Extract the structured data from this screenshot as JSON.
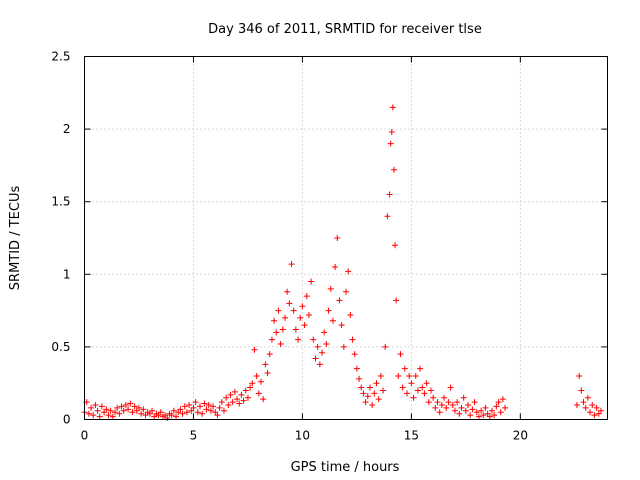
{
  "chart_data": {
    "type": "scatter",
    "title": "Day 346 of 2011, SRMTID for receiver tlse",
    "xlabel": "GPS time / hours",
    "ylabel": "SRMTID / TECUs",
    "xlim": [
      0,
      24
    ],
    "ylim": [
      0,
      2.5
    ],
    "grid": true,
    "marker": "+",
    "color": "#ff0000",
    "x_ticks": [
      0,
      5,
      10,
      15,
      20
    ],
    "x_tick_labels": [
      "0",
      "5",
      "10",
      "15",
      "20"
    ],
    "y_ticks": [
      0,
      0.5,
      1,
      1.5,
      2,
      2.5
    ],
    "y_tick_labels": [
      "0",
      "0.5",
      "1",
      "1.5",
      "2",
      "2.5"
    ],
    "series": [
      {
        "name": "SRMTID",
        "points": [
          [
            0.0,
            0.05
          ],
          [
            0.1,
            0.12
          ],
          [
            0.2,
            0.04
          ],
          [
            0.3,
            0.08
          ],
          [
            0.4,
            0.03
          ],
          [
            0.5,
            0.1
          ],
          [
            0.6,
            0.06
          ],
          [
            0.7,
            0.02
          ],
          [
            0.8,
            0.09
          ],
          [
            0.9,
            0.05
          ],
          [
            1.0,
            0.07
          ],
          [
            1.1,
            0.03
          ],
          [
            1.2,
            0.06
          ],
          [
            1.3,
            0.02
          ],
          [
            1.4,
            0.05
          ],
          [
            1.5,
            0.08
          ],
          [
            1.6,
            0.04
          ],
          [
            1.7,
            0.09
          ],
          [
            1.8,
            0.06
          ],
          [
            1.9,
            0.1
          ],
          [
            2.0,
            0.07
          ],
          [
            2.1,
            0.11
          ],
          [
            2.2,
            0.05
          ],
          [
            2.3,
            0.09
          ],
          [
            2.4,
            0.06
          ],
          [
            2.5,
            0.08
          ],
          [
            2.6,
            0.04
          ],
          [
            2.7,
            0.07
          ],
          [
            2.8,
            0.03
          ],
          [
            2.9,
            0.05
          ],
          [
            3.0,
            0.04
          ],
          [
            3.1,
            0.06
          ],
          [
            3.2,
            0.02
          ],
          [
            3.3,
            0.04
          ],
          [
            3.4,
            0.03
          ],
          [
            3.5,
            0.05
          ],
          [
            3.6,
            0.02
          ],
          [
            3.7,
            0.03
          ],
          [
            3.8,
            0.01
          ],
          [
            3.9,
            0.04
          ],
          [
            4.0,
            0.03
          ],
          [
            4.1,
            0.06
          ],
          [
            4.2,
            0.02
          ],
          [
            4.3,
            0.05
          ],
          [
            4.4,
            0.07
          ],
          [
            4.5,
            0.04
          ],
          [
            4.6,
            0.09
          ],
          [
            4.7,
            0.05
          ],
          [
            4.8,
            0.1
          ],
          [
            4.9,
            0.06
          ],
          [
            5.0,
            0.08
          ],
          [
            5.1,
            0.12
          ],
          [
            5.2,
            0.05
          ],
          [
            5.3,
            0.09
          ],
          [
            5.4,
            0.04
          ],
          [
            5.5,
            0.11
          ],
          [
            5.6,
            0.07
          ],
          [
            5.7,
            0.1
          ],
          [
            5.8,
            0.06
          ],
          [
            5.9,
            0.09
          ],
          [
            6.0,
            0.05
          ],
          [
            6.1,
            0.03
          ],
          [
            6.2,
            0.08
          ],
          [
            6.3,
            0.12
          ],
          [
            6.4,
            0.06
          ],
          [
            6.5,
            0.15
          ],
          [
            6.6,
            0.1
          ],
          [
            6.7,
            0.17
          ],
          [
            6.8,
            0.12
          ],
          [
            6.9,
            0.19
          ],
          [
            7.0,
            0.14
          ],
          [
            7.1,
            0.11
          ],
          [
            7.2,
            0.17
          ],
          [
            7.3,
            0.13
          ],
          [
            7.4,
            0.2
          ],
          [
            7.5,
            0.15
          ],
          [
            7.6,
            0.22
          ],
          [
            7.7,
            0.25
          ],
          [
            7.8,
            0.48
          ],
          [
            7.9,
            0.3
          ],
          [
            8.0,
            0.18
          ],
          [
            8.1,
            0.26
          ],
          [
            8.2,
            0.14
          ],
          [
            8.3,
            0.38
          ],
          [
            8.4,
            0.32
          ],
          [
            8.5,
            0.45
          ],
          [
            8.6,
            0.55
          ],
          [
            8.7,
            0.68
          ],
          [
            8.8,
            0.6
          ],
          [
            8.9,
            0.75
          ],
          [
            9.0,
            0.52
          ],
          [
            9.1,
            0.62
          ],
          [
            9.2,
            0.7
          ],
          [
            9.3,
            0.88
          ],
          [
            9.4,
            0.8
          ],
          [
            9.5,
            1.07
          ],
          [
            9.6,
            0.75
          ],
          [
            9.7,
            0.62
          ],
          [
            9.8,
            0.55
          ],
          [
            9.9,
            0.7
          ],
          [
            10.0,
            0.78
          ],
          [
            10.1,
            0.65
          ],
          [
            10.2,
            0.85
          ],
          [
            10.3,
            0.72
          ],
          [
            10.4,
            0.95
          ],
          [
            10.5,
            0.55
          ],
          [
            10.6,
            0.42
          ],
          [
            10.7,
            0.5
          ],
          [
            10.8,
            0.38
          ],
          [
            10.9,
            0.46
          ],
          [
            11.0,
            0.6
          ],
          [
            11.1,
            0.52
          ],
          [
            11.2,
            0.75
          ],
          [
            11.3,
            0.9
          ],
          [
            11.4,
            0.68
          ],
          [
            11.5,
            1.05
          ],
          [
            11.6,
            1.25
          ],
          [
            11.7,
            0.82
          ],
          [
            11.8,
            0.65
          ],
          [
            11.9,
            0.5
          ],
          [
            12.0,
            0.88
          ],
          [
            12.1,
            1.02
          ],
          [
            12.2,
            0.72
          ],
          [
            12.3,
            0.55
          ],
          [
            12.4,
            0.45
          ],
          [
            12.5,
            0.35
          ],
          [
            12.6,
            0.28
          ],
          [
            12.7,
            0.22
          ],
          [
            12.8,
            0.18
          ],
          [
            12.9,
            0.12
          ],
          [
            13.0,
            0.16
          ],
          [
            13.1,
            0.22
          ],
          [
            13.2,
            0.1
          ],
          [
            13.3,
            0.18
          ],
          [
            13.4,
            0.25
          ],
          [
            13.5,
            0.14
          ],
          [
            13.6,
            0.3
          ],
          [
            13.7,
            0.2
          ],
          [
            13.8,
            0.5
          ],
          [
            13.9,
            1.4
          ],
          [
            14.0,
            1.55
          ],
          [
            14.05,
            1.9
          ],
          [
            14.1,
            1.98
          ],
          [
            14.15,
            2.15
          ],
          [
            14.2,
            1.72
          ],
          [
            14.25,
            1.2
          ],
          [
            14.3,
            0.82
          ],
          [
            14.4,
            0.3
          ],
          [
            14.5,
            0.45
          ],
          [
            14.6,
            0.22
          ],
          [
            14.7,
            0.35
          ],
          [
            14.8,
            0.18
          ],
          [
            14.9,
            0.3
          ],
          [
            15.0,
            0.25
          ],
          [
            15.1,
            0.15
          ],
          [
            15.2,
            0.3
          ],
          [
            15.3,
            0.2
          ],
          [
            15.4,
            0.35
          ],
          [
            15.5,
            0.22
          ],
          [
            15.6,
            0.18
          ],
          [
            15.7,
            0.25
          ],
          [
            15.8,
            0.12
          ],
          [
            15.9,
            0.2
          ],
          [
            16.0,
            0.15
          ],
          [
            16.1,
            0.08
          ],
          [
            16.2,
            0.12
          ],
          [
            16.3,
            0.05
          ],
          [
            16.4,
            0.1
          ],
          [
            16.5,
            0.15
          ],
          [
            16.6,
            0.08
          ],
          [
            16.7,
            0.12
          ],
          [
            16.8,
            0.22
          ],
          [
            16.9,
            0.1
          ],
          [
            17.0,
            0.06
          ],
          [
            17.1,
            0.12
          ],
          [
            17.2,
            0.04
          ],
          [
            17.3,
            0.08
          ],
          [
            17.4,
            0.15
          ],
          [
            17.5,
            0.06
          ],
          [
            17.6,
            0.1
          ],
          [
            17.7,
            0.03
          ],
          [
            17.8,
            0.07
          ],
          [
            17.9,
            0.12
          ],
          [
            18.0,
            0.05
          ],
          [
            18.1,
            0.02
          ],
          [
            18.2,
            0.06
          ],
          [
            18.3,
            0.03
          ],
          [
            18.4,
            0.08
          ],
          [
            18.5,
            0.04
          ],
          [
            18.6,
            0.02
          ],
          [
            18.7,
            0.06
          ],
          [
            18.8,
            0.03
          ],
          [
            18.9,
            0.09
          ],
          [
            19.0,
            0.12
          ],
          [
            19.1,
            0.05
          ],
          [
            19.2,
            0.14
          ],
          [
            19.3,
            0.08
          ],
          [
            22.6,
            0.1
          ],
          [
            22.7,
            0.3
          ],
          [
            22.8,
            0.2
          ],
          [
            22.9,
            0.12
          ],
          [
            23.0,
            0.08
          ],
          [
            23.1,
            0.15
          ],
          [
            23.2,
            0.05
          ],
          [
            23.3,
            0.1
          ],
          [
            23.4,
            0.03
          ],
          [
            23.5,
            0.08
          ],
          [
            23.6,
            0.04
          ],
          [
            23.7,
            0.06
          ]
        ]
      }
    ]
  }
}
